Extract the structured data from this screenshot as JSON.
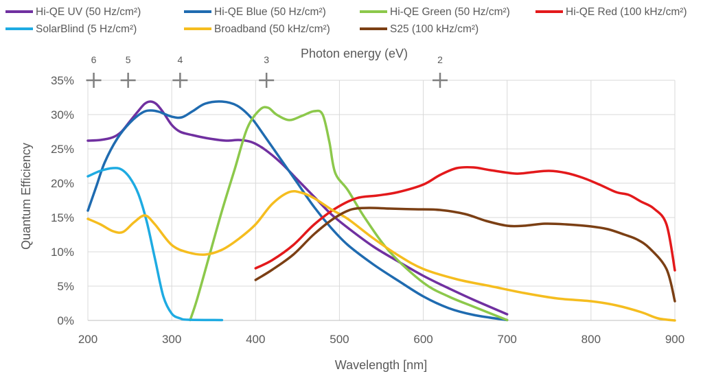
{
  "chart_data": {
    "type": "line",
    "xlabel": "Wavelength [nm]",
    "ylabel": "Quantum Efficiency",
    "top_axis_label": "Photon energy (eV)",
    "xlim": [
      200,
      900
    ],
    "ylim": [
      0,
      35
    ],
    "x_ticks": [
      {
        "value": 200,
        "label": "200"
      },
      {
        "value": 300,
        "label": "300"
      },
      {
        "value": 400,
        "label": "400"
      },
      {
        "value": 500,
        "label": "500"
      },
      {
        "value": 600,
        "label": "600"
      },
      {
        "value": 700,
        "label": "700"
      },
      {
        "value": 800,
        "label": "800"
      },
      {
        "value": 900,
        "label": "900"
      }
    ],
    "y_ticks": [
      {
        "value": 0,
        "label": "0%"
      },
      {
        "value": 5,
        "label": "5%"
      },
      {
        "value": 10,
        "label": "10%"
      },
      {
        "value": 15,
        "label": "15%"
      },
      {
        "value": 20,
        "label": "20%"
      },
      {
        "value": 25,
        "label": "25%"
      },
      {
        "value": 30,
        "label": "30%"
      },
      {
        "value": 35,
        "label": "35%"
      }
    ],
    "energy_markers": [
      {
        "label": "6",
        "wavelength": 207
      },
      {
        "label": "5",
        "wavelength": 248
      },
      {
        "label": "4",
        "wavelength": 310
      },
      {
        "label": "3",
        "wavelength": 413
      },
      {
        "label": "2",
        "wavelength": 620
      }
    ],
    "grid": true,
    "legend_position": "top",
    "series": [
      {
        "name": "Hi-QE UV (50 Hz/cm²)",
        "color": "#7030a0",
        "points": [
          [
            200,
            26.2
          ],
          [
            215,
            26.3
          ],
          [
            230,
            26.7
          ],
          [
            240,
            27.5
          ],
          [
            250,
            29
          ],
          [
            260,
            30.5
          ],
          [
            268,
            31.6
          ],
          [
            275,
            31.9
          ],
          [
            282,
            31.5
          ],
          [
            290,
            30.3
          ],
          [
            300,
            28.5
          ],
          [
            310,
            27.5
          ],
          [
            325,
            27
          ],
          [
            345,
            26.5
          ],
          [
            365,
            26.2
          ],
          [
            380,
            26.3
          ],
          [
            395,
            26
          ],
          [
            410,
            25
          ],
          [
            430,
            23
          ],
          [
            450,
            20.5
          ],
          [
            470,
            18
          ],
          [
            490,
            15.5
          ],
          [
            510,
            13.5
          ],
          [
            540,
            10.8
          ],
          [
            570,
            8.6
          ],
          [
            600,
            6.5
          ],
          [
            630,
            4.7
          ],
          [
            660,
            3
          ],
          [
            700,
            0.9
          ]
        ]
      },
      {
        "name": "Hi-QE Blue (50 Hz/cm²)",
        "color": "#1f6bb0",
        "points": [
          [
            200,
            16
          ],
          [
            210,
            19.5
          ],
          [
            220,
            23
          ],
          [
            235,
            26.5
          ],
          [
            250,
            28.8
          ],
          [
            265,
            30.3
          ],
          [
            275,
            30.6
          ],
          [
            285,
            30.4
          ],
          [
            300,
            29.7
          ],
          [
            312,
            29.6
          ],
          [
            325,
            30.5
          ],
          [
            340,
            31.6
          ],
          [
            360,
            31.9
          ],
          [
            378,
            31.3
          ],
          [
            395,
            29.5
          ],
          [
            410,
            27
          ],
          [
            430,
            23.5
          ],
          [
            450,
            20
          ],
          [
            470,
            16.5
          ],
          [
            490,
            13.5
          ],
          [
            510,
            11
          ],
          [
            540,
            8.2
          ],
          [
            570,
            5.8
          ],
          [
            600,
            3.5
          ],
          [
            630,
            1.8
          ],
          [
            660,
            0.8
          ],
          [
            700,
            0.05
          ]
        ]
      },
      {
        "name": "Hi-QE Green (50 Hz/cm²)",
        "color": "#8cc84b",
        "points": [
          [
            322,
            0.05
          ],
          [
            330,
            3
          ],
          [
            345,
            9.5
          ],
          [
            360,
            16
          ],
          [
            375,
            22
          ],
          [
            390,
            28
          ],
          [
            405,
            30.7
          ],
          [
            415,
            31
          ],
          [
            425,
            30
          ],
          [
            440,
            29.2
          ],
          [
            455,
            29.8
          ],
          [
            470,
            30.5
          ],
          [
            480,
            30
          ],
          [
            488,
            26
          ],
          [
            495,
            21.5
          ],
          [
            510,
            19
          ],
          [
            530,
            15
          ],
          [
            560,
            10
          ],
          [
            600,
            5.5
          ],
          [
            630,
            3.5
          ],
          [
            660,
            2
          ],
          [
            700,
            0.05
          ]
        ]
      },
      {
        "name": "Hi-QE Red (100 kHz/cm²)",
        "color": "#e3191b",
        "points": [
          [
            400,
            7.6
          ],
          [
            420,
            8.8
          ],
          [
            445,
            11
          ],
          [
            470,
            14
          ],
          [
            495,
            16.3
          ],
          [
            520,
            17.8
          ],
          [
            545,
            18.2
          ],
          [
            570,
            18.7
          ],
          [
            600,
            19.8
          ],
          [
            620,
            21.2
          ],
          [
            640,
            22.2
          ],
          [
            660,
            22.3
          ],
          [
            680,
            21.9
          ],
          [
            710,
            21.4
          ],
          [
            730,
            21.6
          ],
          [
            750,
            21.8
          ],
          [
            770,
            21.5
          ],
          [
            790,
            20.8
          ],
          [
            810,
            19.8
          ],
          [
            830,
            18.7
          ],
          [
            845,
            18.3
          ],
          [
            860,
            17.3
          ],
          [
            875,
            16.3
          ],
          [
            890,
            14
          ],
          [
            900,
            7.3
          ]
        ]
      },
      {
        "name": "SolarBlind (5 Hz/cm²)",
        "color": "#1eabe2",
        "points": [
          [
            200,
            21
          ],
          [
            215,
            21.8
          ],
          [
            230,
            22.2
          ],
          [
            240,
            22
          ],
          [
            250,
            20.8
          ],
          [
            260,
            18.5
          ],
          [
            270,
            14.5
          ],
          [
            280,
            9
          ],
          [
            290,
            3.5
          ],
          [
            300,
            1
          ],
          [
            310,
            0.3
          ],
          [
            320,
            0.1
          ],
          [
            360,
            0.05
          ]
        ]
      },
      {
        "name": "Broadband (50 kHz/cm²)",
        "color": "#f5bd1f",
        "points": [
          [
            200,
            14.8
          ],
          [
            215,
            14
          ],
          [
            230,
            13
          ],
          [
            242,
            12.9
          ],
          [
            255,
            14.3
          ],
          [
            268,
            15.3
          ],
          [
            280,
            14
          ],
          [
            300,
            11
          ],
          [
            320,
            9.9
          ],
          [
            340,
            9.6
          ],
          [
            360,
            10.3
          ],
          [
            380,
            11.9
          ],
          [
            400,
            14
          ],
          [
            420,
            17
          ],
          [
            440,
            18.7
          ],
          [
            455,
            18.6
          ],
          [
            470,
            17.8
          ],
          [
            490,
            16.2
          ],
          [
            510,
            14.8
          ],
          [
            540,
            12
          ],
          [
            570,
            9.5
          ],
          [
            600,
            7.5
          ],
          [
            640,
            6
          ],
          [
            680,
            5
          ],
          [
            720,
            4
          ],
          [
            760,
            3.2
          ],
          [
            800,
            2.8
          ],
          [
            830,
            2.2
          ],
          [
            860,
            1.2
          ],
          [
            880,
            0.3
          ],
          [
            900,
            0
          ]
        ]
      },
      {
        "name": "S25 (100 kHz/cm²)",
        "color": "#7b3f14",
        "points": [
          [
            400,
            5.9
          ],
          [
            420,
            7.4
          ],
          [
            445,
            9.6
          ],
          [
            470,
            12.6
          ],
          [
            495,
            15
          ],
          [
            515,
            16.2
          ],
          [
            535,
            16.4
          ],
          [
            560,
            16.3
          ],
          [
            590,
            16.2
          ],
          [
            620,
            16.1
          ],
          [
            650,
            15.5
          ],
          [
            675,
            14.5
          ],
          [
            700,
            13.8
          ],
          [
            720,
            13.8
          ],
          [
            745,
            14.1
          ],
          [
            770,
            14
          ],
          [
            800,
            13.7
          ],
          [
            820,
            13.3
          ],
          [
            840,
            12.5
          ],
          [
            855,
            11.8
          ],
          [
            870,
            10.5
          ],
          [
            890,
            7.5
          ],
          [
            900,
            2.8
          ]
        ]
      }
    ]
  }
}
